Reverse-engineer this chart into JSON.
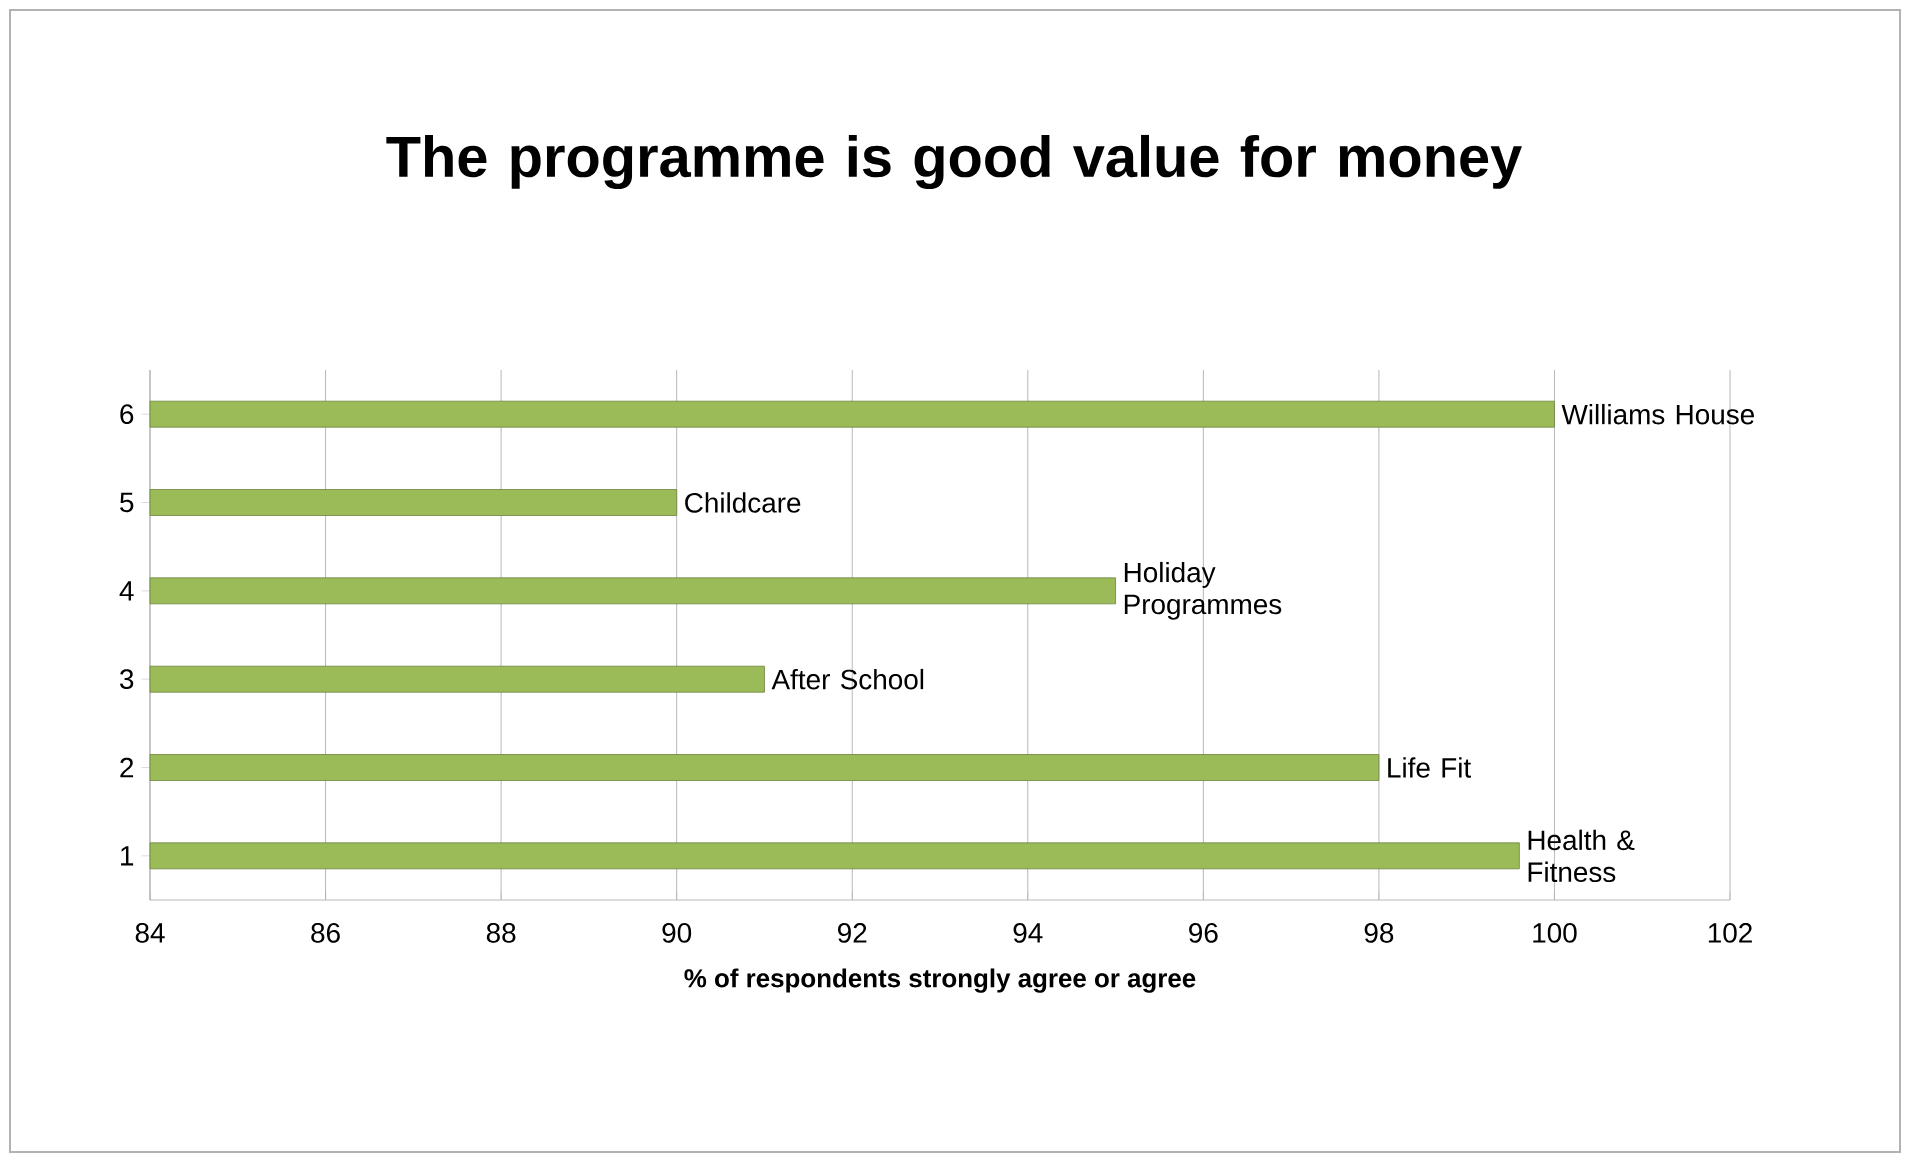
{
  "chart_data": {
    "type": "bar",
    "orientation": "horizontal",
    "title": "The programme is good value for money",
    "xlabel": "% of respondents strongly agree or agree",
    "categories": [
      "6",
      "5",
      "4",
      "3",
      "2",
      "1"
    ],
    "values": [
      100,
      90,
      95,
      91,
      98,
      99.6
    ],
    "color": "#9bbb59",
    "xlim": [
      84,
      102
    ],
    "xticks": [
      84,
      86,
      88,
      90,
      92,
      94,
      96,
      98,
      100,
      102
    ],
    "grid": "x",
    "annotations": [
      {
        "text": "Williams House",
        "x": 100,
        "y": "6"
      },
      {
        "text": "Childcare",
        "x": 90,
        "y": "5"
      },
      {
        "text": "Holiday Programmes",
        "x": 95,
        "y": "4"
      },
      {
        "text": "After School",
        "x": 91,
        "y": "3"
      },
      {
        "text": "Life Fit",
        "x": 98,
        "y": "2"
      },
      {
        "text": "Health & Fitness",
        "x": 99.6,
        "y": "1"
      }
    ]
  }
}
